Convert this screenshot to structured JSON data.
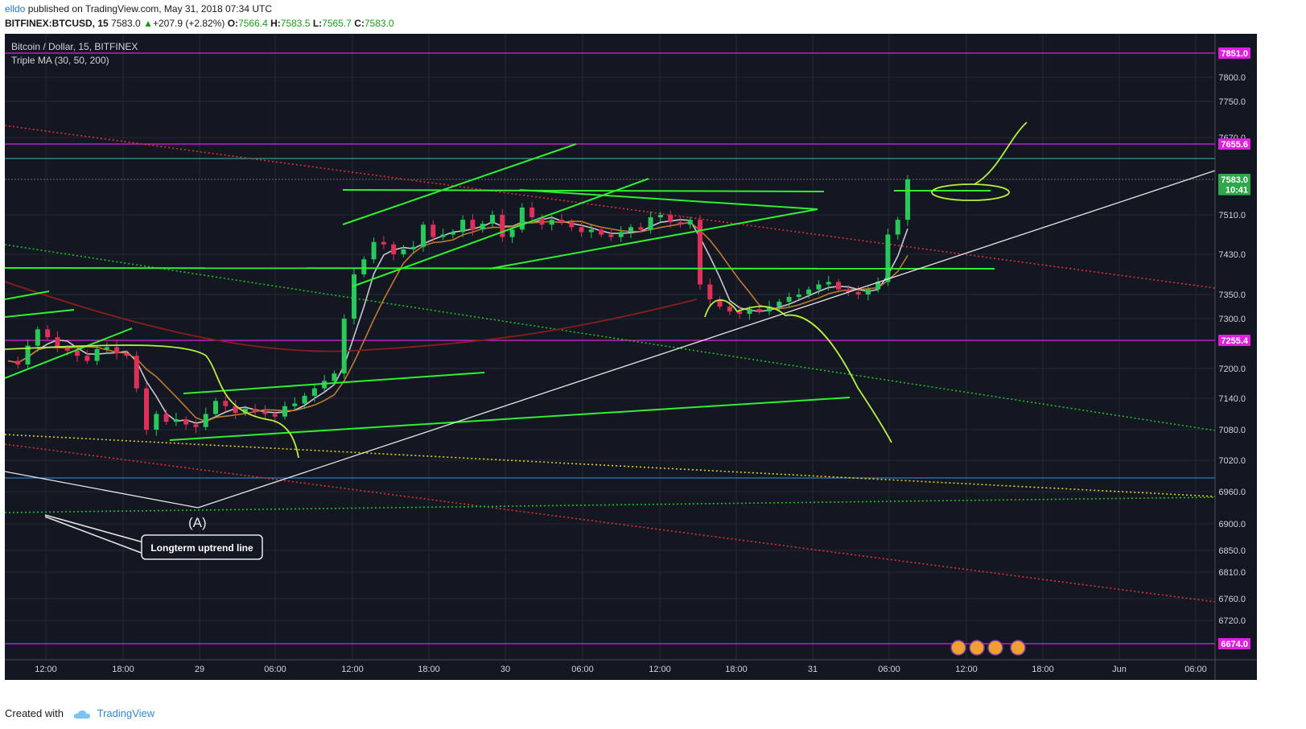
{
  "header": {
    "user": "elldo",
    "published_text": " published on TradingView.com, May 31, 2018 07:34 UTC",
    "symbol": "BITFINEX:BTCUSD, 15",
    "last": "7583.0",
    "change": "+207.9 (+2.82%)",
    "o_label": "O:",
    "o_value": "7566.4",
    "h_label": "H:",
    "h_value": "7583.5",
    "l_label": "L:",
    "l_value": "7565.7",
    "c_label": "C:",
    "c_value": "7583.0"
  },
  "footer": {
    "created_with": "Created with",
    "brand": "TradingView"
  },
  "chart_data": {
    "type": "candlestick",
    "legend": {
      "title": "Bitcoin / Dollar, 15, BITFINEX",
      "indicator": "Triple MA (30, 50, 200)"
    },
    "y_ticks": [
      "7800.0",
      "7750.0",
      "7670.0",
      "7510.0",
      "7430.0",
      "7350.0",
      "7300.0",
      "7200.0",
      "7140.0",
      "7080.0",
      "7020.0",
      "6960.0",
      "6900.0",
      "6850.0",
      "6810.0",
      "6760.0",
      "6720.0"
    ],
    "y_tick_values": [
      7800,
      7750,
      7670,
      7510,
      7430,
      7350,
      7300,
      7200,
      7140,
      7080,
      7020,
      6960,
      6900,
      6850,
      6810,
      6760,
      6720
    ],
    "x_ticks": [
      "12:00",
      "18:00",
      "29",
      "06:00",
      "12:00",
      "18:00",
      "30",
      "06:00",
      "12:00",
      "18:00",
      "31",
      "06:00",
      "12:00",
      "18:00",
      "Jun",
      "06:00"
    ],
    "price_tags": [
      {
        "value": "7851.0",
        "price": 7851,
        "color": "#e020e0"
      },
      {
        "value": "7655.6",
        "price": 7655.6,
        "color": "#e020e0"
      },
      {
        "value": "7583.0",
        "price": 7583,
        "color": "#2ea84a"
      },
      {
        "value": "10:41",
        "price": 7562,
        "color": "#2ea84a"
      },
      {
        "value": "7255.4",
        "price": 7255.4,
        "color": "#e020e0"
      },
      {
        "value": "6674.0",
        "price": 6674,
        "color": "#e020e0"
      }
    ],
    "annotations": [
      {
        "text": "(A)"
      },
      {
        "text": "Longterm uptrend line"
      }
    ],
    "price_series": [
      7215,
      7208,
      7245,
      7278,
      7262,
      7240,
      7235,
      7225,
      7215,
      7238,
      7242,
      7230,
      7225,
      7160,
      7080,
      7110,
      7095,
      7100,
      7090,
      7085,
      7110,
      7135,
      7125,
      7112,
      7120,
      7115,
      7110,
      7105,
      7125,
      7130,
      7145,
      7160,
      7175,
      7190,
      7300,
      7390,
      7420,
      7455,
      7450,
      7430,
      7440,
      7445,
      7490,
      7465,
      7470,
      7475,
      7500,
      7480,
      7492,
      7510,
      7465,
      7480,
      7525,
      7505,
      7490,
      7500,
      7495,
      7485,
      7475,
      7480,
      7470,
      7465,
      7475,
      7485,
      7480,
      7505,
      7510,
      7495,
      7490,
      7500,
      7370,
      7340,
      7325,
      7315,
      7310,
      7320,
      7315,
      7325,
      7335,
      7345,
      7350,
      7360,
      7370,
      7375,
      7360,
      7355,
      7350,
      7360,
      7375,
      7470,
      7500,
      7583
    ]
  }
}
